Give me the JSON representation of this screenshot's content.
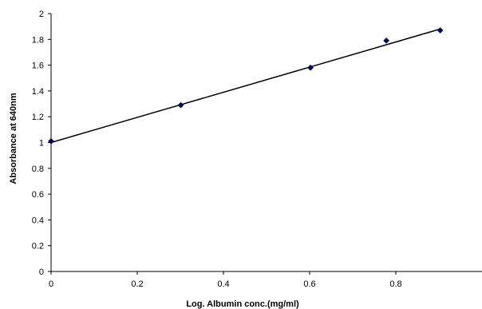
{
  "chart_data": {
    "type": "scatter",
    "title": "",
    "xlabel": "Log. Albumin conc.(mg/ml)",
    "ylabel": "Absorbance at 640nm",
    "xlim": [
      0,
      1
    ],
    "ylim": [
      0,
      2
    ],
    "x_ticks": [
      0,
      0.2,
      0.4,
      0.6,
      0.8
    ],
    "x_tick_labels": [
      "0",
      "0.2",
      "0.4",
      "0.6",
      "0.8"
    ],
    "y_ticks": [
      0,
      0.2,
      0.4,
      0.6,
      0.8,
      1,
      1.2,
      1.4,
      1.6,
      1.8,
      2
    ],
    "y_tick_labels": [
      "0",
      "0.2",
      "0.4",
      "0.6",
      "0.8",
      "1",
      "1.2",
      "1.4",
      "1.6",
      "1.8",
      "2"
    ],
    "grid": false,
    "legend": "none",
    "series": [
      {
        "x": [
          0,
          0.301,
          0.602,
          0.778,
          0.903
        ],
        "y": [
          1.01,
          1.29,
          1.58,
          1.79,
          1.87
        ],
        "marker": "diamond",
        "color": "#00005a"
      }
    ],
    "trendline": {
      "type": "linear",
      "x": [
        0,
        0.903
      ],
      "y": [
        1.0,
        1.88
      ],
      "color": "#000000"
    }
  }
}
